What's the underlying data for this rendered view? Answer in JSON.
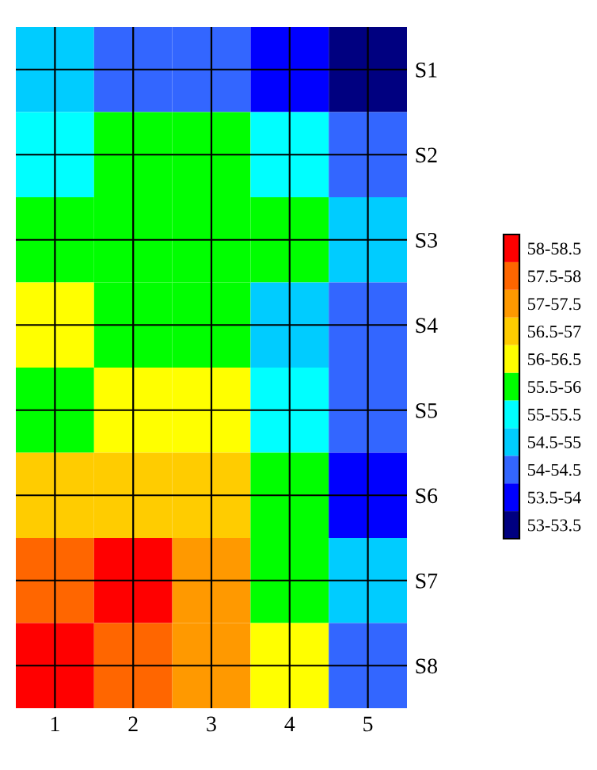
{
  "chart_data": {
    "type": "heatmap",
    "categories": [
      "1",
      "2",
      "3",
      "4",
      "5"
    ],
    "y_categories": [
      "S1",
      "S2",
      "S3",
      "S4",
      "S5",
      "S6",
      "S7",
      "S8"
    ],
    "cells": [
      [
        54.8,
        54.4,
        54.2,
        53.9,
        53.1
      ],
      [
        55.3,
        55.6,
        55.5,
        55.1,
        54.3
      ],
      [
        55.8,
        55.9,
        55.8,
        55.5,
        54.6
      ],
      [
        56.3,
        55.9,
        55.5,
        54.9,
        54.4
      ],
      [
        55.9,
        56.3,
        56.0,
        55.2,
        54.2
      ],
      [
        56.6,
        56.7,
        56.5,
        55.5,
        53.9
      ],
      [
        57.6,
        58.1,
        57.0,
        55.9,
        54.5
      ],
      [
        58.2,
        57.8,
        57.2,
        56.2,
        54.4
      ]
    ],
    "clim": [
      53,
      58.5
    ],
    "colors": [
      "#000080",
      "#0000ff",
      "#3366ff",
      "#00ccff",
      "#00ffff",
      "#00ff00",
      "#ffff00",
      "#ffcc00",
      "#ff9900",
      "#ff6600",
      "#ff0000"
    ],
    "cticks": [
      {
        "value": 58.25,
        "label": "58-58.5"
      },
      {
        "value": 57.75,
        "label": "57.5-58"
      },
      {
        "value": 57.25,
        "label": "57-57.5"
      },
      {
        "value": 56.75,
        "label": "56.5-57"
      },
      {
        "value": 56.25,
        "label": "56-56.5"
      },
      {
        "value": 55.75,
        "label": "55.5-56"
      },
      {
        "value": 55.25,
        "label": "55-55.5"
      },
      {
        "value": 54.75,
        "label": "54.5-55"
      },
      {
        "value": 54.25,
        "label": "54-54.5"
      },
      {
        "value": 53.75,
        "label": "53.5-54"
      },
      {
        "value": 53.25,
        "label": "53-53.5"
      }
    ],
    "grid": true
  }
}
